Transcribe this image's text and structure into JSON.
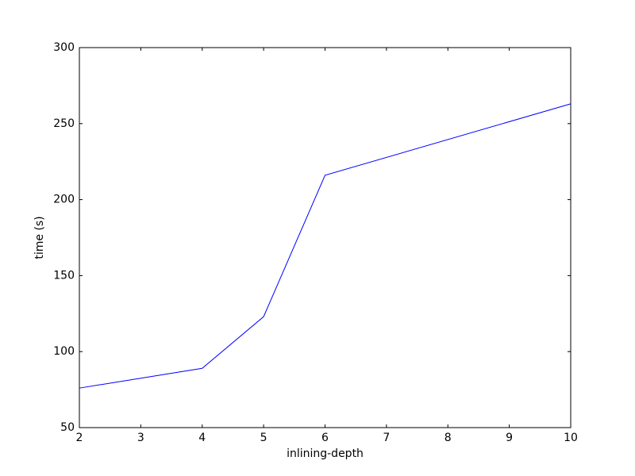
{
  "chart_data": {
    "type": "line",
    "x": [
      2,
      4,
      5,
      6,
      10
    ],
    "series": [
      {
        "color": "#0000ff",
        "values": [
          76,
          89,
          123,
          216,
          263
        ]
      }
    ],
    "xlabel": "inlining-depth",
    "ylabel": "time (s)",
    "xlim": [
      2,
      10
    ],
    "xticks": [
      2,
      3,
      4,
      5,
      6,
      7,
      8,
      9,
      10
    ],
    "ylim": [
      50,
      300
    ],
    "yticks": [
      50,
      100,
      150,
      200,
      250,
      300
    ]
  }
}
